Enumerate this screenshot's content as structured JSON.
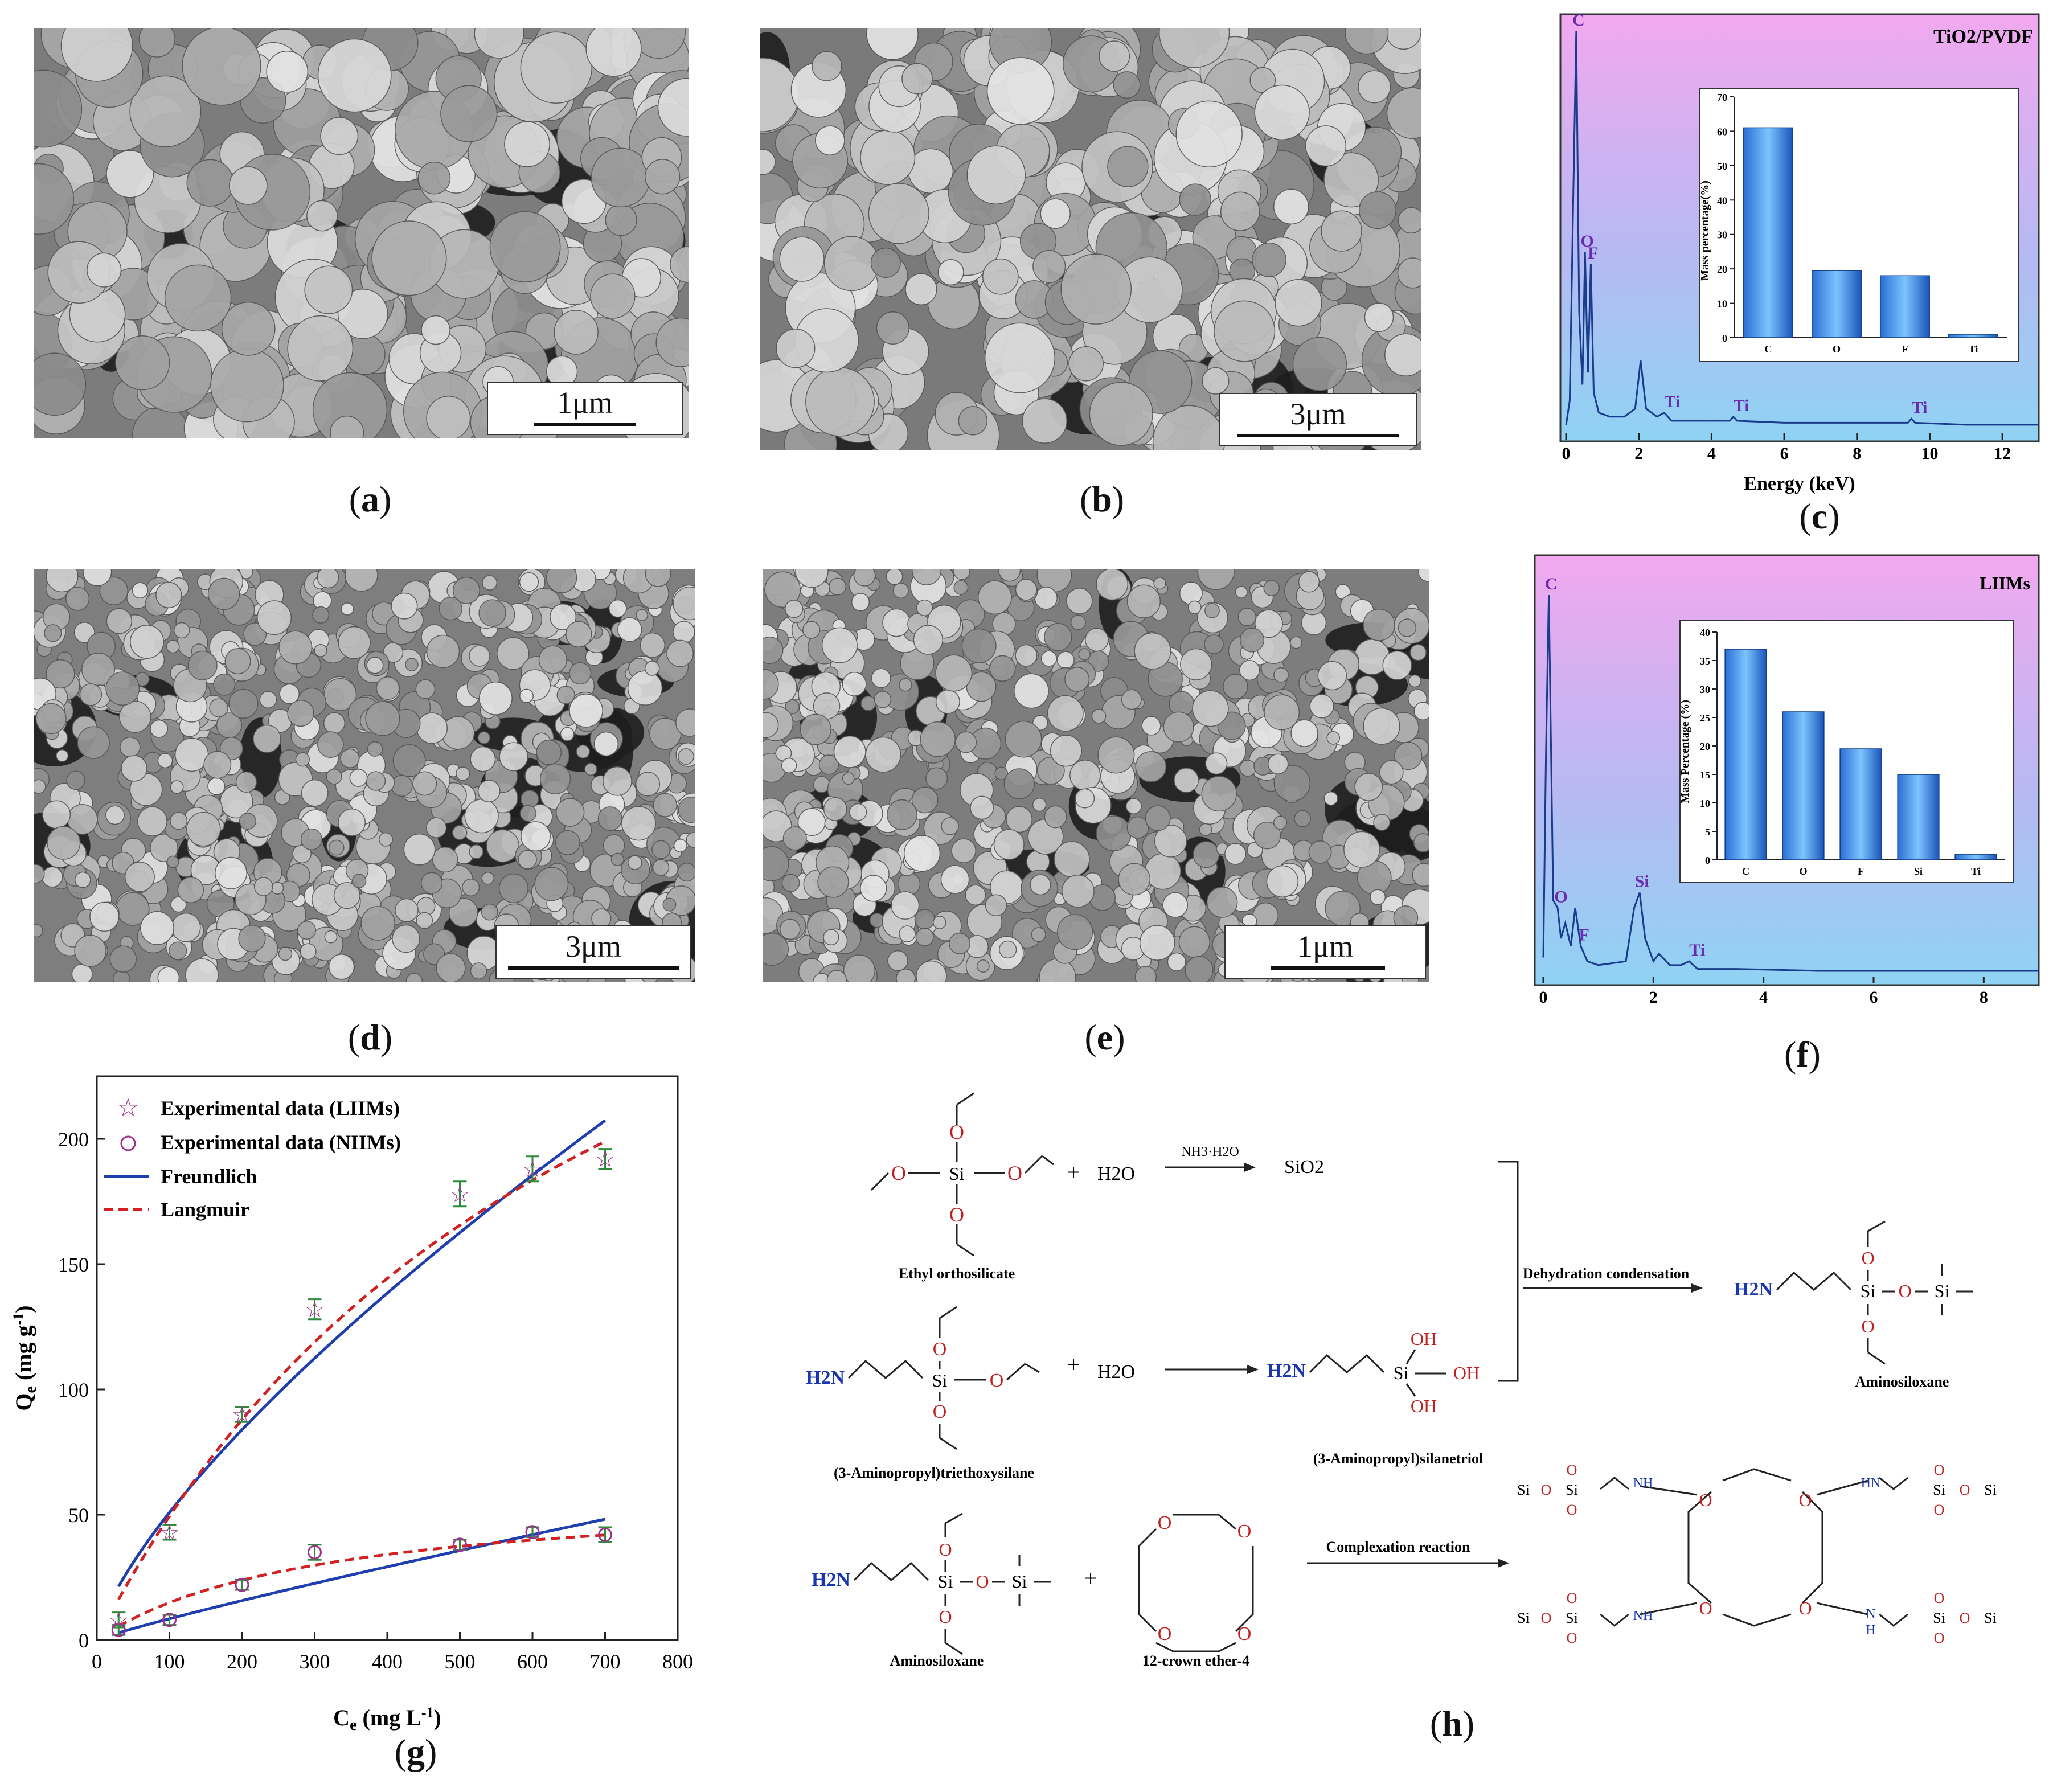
{
  "panels": {
    "a": {
      "label": "a",
      "scalebar": "1μm"
    },
    "b": {
      "label": "b",
      "scalebar": "3μm"
    },
    "d": {
      "label": "d",
      "scalebar": "3μm"
    },
    "e": {
      "label": "e",
      "scalebar": "1μm"
    },
    "c": {
      "label": "c"
    },
    "f": {
      "label": "f"
    },
    "g": {
      "label": "g"
    },
    "h": {
      "label": "h"
    }
  },
  "chart_data": [
    {
      "id": "c",
      "type": "line",
      "title": "TiO2/PVDF",
      "xlabel": "Energy (keV)",
      "xlim": [
        0,
        13
      ],
      "xticks": [
        0,
        2,
        4,
        6,
        8,
        10,
        12
      ],
      "peak_labels": [
        {
          "text": "C",
          "x": 0.28
        },
        {
          "text": "O",
          "x": 0.52
        },
        {
          "text": "F",
          "x": 0.68
        },
        {
          "text": "Ti",
          "x": 2.7
        },
        {
          "text": "Ti",
          "x": 4.6
        },
        {
          "text": "Ti",
          "x": 9.5
        }
      ],
      "spectrum": {
        "x": [
          0,
          0.1,
          0.2,
          0.28,
          0.36,
          0.45,
          0.52,
          0.6,
          0.68,
          0.76,
          0.9,
          1.2,
          1.6,
          1.9,
          2.05,
          2.2,
          2.5,
          2.7,
          2.9,
          3.5,
          4.5,
          4.6,
          4.7,
          6,
          8,
          9.4,
          9.5,
          9.6,
          11,
          13
        ],
        "y": [
          2,
          8,
          60,
          100,
          30,
          12,
          45,
          15,
          42,
          10,
          5,
          4,
          4,
          6,
          18,
          6,
          4,
          5,
          3,
          3,
          3,
          4,
          3,
          2.5,
          2.5,
          2.5,
          3.5,
          2.5,
          2,
          2
        ]
      },
      "inset": {
        "type": "bar",
        "ylabel": "Mass percentage(%)",
        "ylim": [
          0,
          70
        ],
        "yticks": [
          0,
          10,
          20,
          30,
          40,
          50,
          60,
          70
        ],
        "categories": [
          "C",
          "O",
          "F",
          "Ti"
        ],
        "values": [
          61,
          19.5,
          18,
          1
        ]
      }
    },
    {
      "id": "f",
      "type": "line",
      "title": "LIIMs",
      "xlim": [
        0,
        9
      ],
      "xticks": [
        0,
        2,
        4,
        6,
        8
      ],
      "peak_labels": [
        {
          "text": "C",
          "x": 0.1
        },
        {
          "text": "O",
          "x": 0.28
        },
        {
          "text": "F",
          "x": 0.7
        },
        {
          "text": "Si",
          "x": 1.75
        },
        {
          "text": "Ti",
          "x": 2.65
        }
      ],
      "spectrum": {
        "x": [
          0,
          0.05,
          0.1,
          0.18,
          0.26,
          0.32,
          0.4,
          0.5,
          0.58,
          0.68,
          0.8,
          1.0,
          1.5,
          1.65,
          1.75,
          1.85,
          2.0,
          2.1,
          2.3,
          2.5,
          2.65,
          2.8,
          3.5,
          5,
          7,
          9
        ],
        "y": [
          5,
          60,
          100,
          20,
          18,
          10,
          14,
          8,
          18,
          8,
          4,
          3,
          4,
          18,
          22,
          10,
          4,
          6,
          3,
          3,
          4,
          2,
          2,
          1.5,
          1.5,
          1.5
        ]
      },
      "inset": {
        "type": "bar",
        "ylabel": "Mass Percentage (%)",
        "ylim": [
          0,
          40
        ],
        "yticks": [
          0,
          5,
          10,
          15,
          20,
          25,
          30,
          35,
          40
        ],
        "categories": [
          "C",
          "O",
          "F",
          "Si",
          "Ti"
        ],
        "values": [
          37,
          26,
          19.5,
          15,
          1
        ]
      }
    },
    {
      "id": "g",
      "type": "scatter",
      "xlabel": "Ce (mg L-1)",
      "ylabel": "Qe (mg g-1)",
      "xlim": [
        0,
        800
      ],
      "ylim": [
        0,
        225
      ],
      "xticks": [
        0,
        100,
        200,
        300,
        400,
        500,
        600,
        700,
        800
      ],
      "yticks": [
        0,
        50,
        100,
        150,
        200
      ],
      "legend": "top-left",
      "legend_labels": {
        "liims": "Experimental data (LIIMs)",
        "niims": "Experimental data (NIIMs)",
        "freundlich": "Freundlich",
        "langmuir": "Langmuir"
      },
      "series": [
        {
          "name": "Experimental data (LIIMs)",
          "x": [
            30,
            100,
            200,
            300,
            500,
            600,
            700
          ],
          "y": [
            8,
            43,
            90,
            132,
            178,
            188,
            192
          ],
          "err": [
            3,
            3,
            3,
            4,
            5,
            5,
            4
          ]
        },
        {
          "name": "Experimental data (NIIMs)",
          "x": [
            30,
            100,
            200,
            300,
            500,
            600,
            700
          ],
          "y": [
            4,
            8,
            22,
            35,
            38,
            43,
            42
          ],
          "err": [
            2,
            2,
            2,
            3,
            2,
            2,
            3
          ]
        }
      ],
      "fits": {
        "freundlich_liims": {
          "K": 1.83,
          "n": 0.722
        },
        "langmuir_liims": {
          "qm": 402,
          "KL": 0.0014
        },
        "freundlich_niims": {
          "K": 0.137,
          "n": 0.895
        },
        "langmuir_niims": {
          "qm": 60,
          "KL": 0.0033
        }
      },
      "colors": {
        "freundlich": "#1f3fb0",
        "langmuir": "#d32020",
        "liims": "#a0308f",
        "niims": "#a0308f",
        "err": "#2e8b3a"
      }
    }
  ],
  "scheme": {
    "reagent_teos": "Ethyl orthosilicate",
    "h2o": "H2O",
    "catalyst": "NH3·H2O",
    "sio2": "SiO2",
    "reagent_aptes": "(3-Aminopropyl)triethoxysilane",
    "product_silanetriol": "(3-Aminopropyl)silanetriol",
    "dehydration": "Dehydration condensation",
    "aminosiloxane_1": "Aminosiloxane",
    "aminosiloxane_2": "Aminosiloxane",
    "crown": "12-crown ether-4",
    "complexation": "Complexation reaction",
    "plus": "+",
    "h2n": "H2N",
    "si": "Si",
    "o": "O",
    "oh": "OH",
    "hn": "HN",
    "nh": "NH",
    "n": "N",
    "h": "H"
  }
}
